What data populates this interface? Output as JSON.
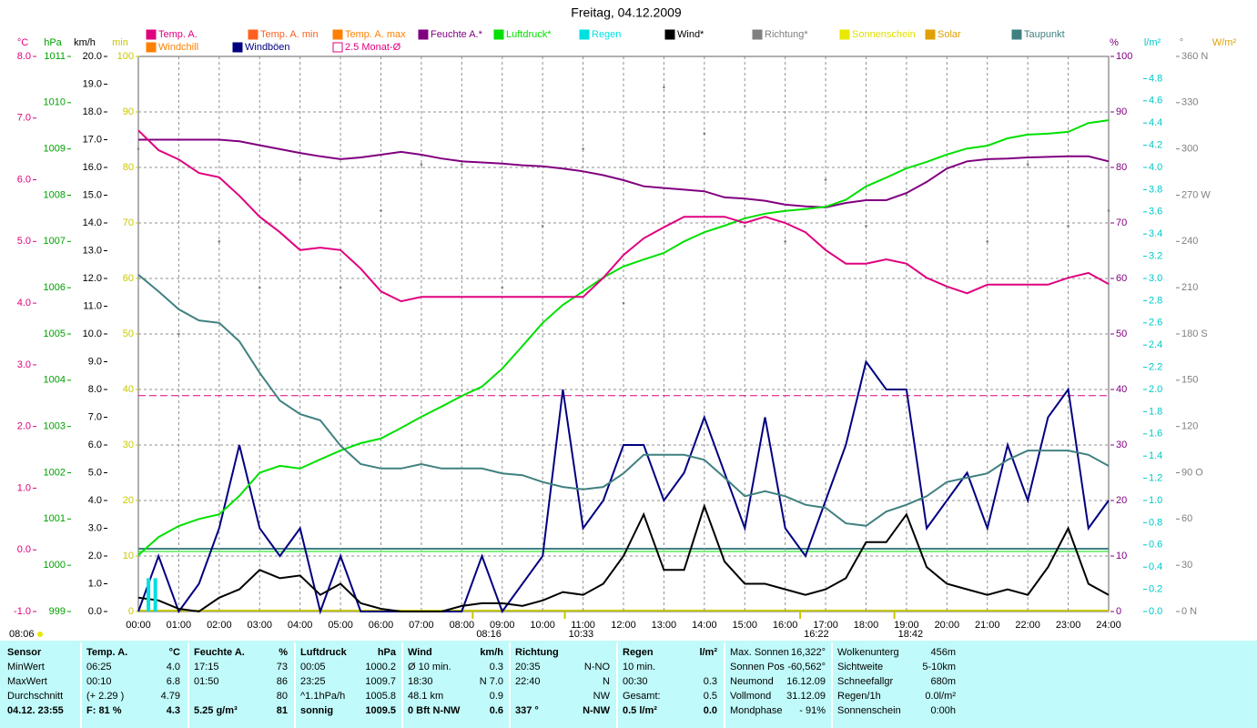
{
  "chart_data": {
    "type": "line",
    "title": "Freitag, 04.12.2009",
    "xlim": [
      0,
      24
    ],
    "xticks": [
      {
        "value": 0,
        "label": "00:00"
      },
      {
        "value": 1,
        "label": "01:00"
      },
      {
        "value": 2,
        "label": "02:00"
      },
      {
        "value": 3,
        "label": "03:00"
      },
      {
        "value": 4,
        "label": "04:00"
      },
      {
        "value": 5,
        "label": "05:00"
      },
      {
        "value": 6,
        "label": "06:00"
      },
      {
        "value": 7,
        "label": "07:00"
      },
      {
        "value": 8,
        "label": "08:00"
      },
      {
        "value": 9,
        "label": "09:00"
      },
      {
        "value": 10,
        "label": "10:00"
      },
      {
        "value": 11,
        "label": "11:00"
      },
      {
        "value": 12,
        "label": "12:00"
      },
      {
        "value": 13,
        "label": "13:00"
      },
      {
        "value": 14,
        "label": "14:00"
      },
      {
        "value": 15,
        "label": "15:00"
      },
      {
        "value": 16,
        "label": "16:00"
      },
      {
        "value": 17,
        "label": "17:00"
      },
      {
        "value": 18,
        "label": "18:00"
      },
      {
        "value": 19,
        "label": "19:00"
      },
      {
        "value": 20,
        "label": "20:00"
      },
      {
        "value": 21,
        "label": "21:00"
      },
      {
        "value": 22,
        "label": "22:00"
      },
      {
        "value": 23,
        "label": "23:00"
      },
      {
        "value": 24,
        "label": "24:00"
      }
    ],
    "grid": true,
    "axes": [
      {
        "label": "°C",
        "color": "#e0007f",
        "lim": [
          -1,
          8
        ],
        "ticks": [
          {
            "value": -1,
            "label": "-1.0"
          },
          {
            "value": 0,
            "label": "0.0"
          },
          {
            "value": 1,
            "label": "1.0"
          },
          {
            "value": 2,
            "label": "2.0"
          },
          {
            "value": 3,
            "label": "3.0"
          },
          {
            "value": 4,
            "label": "4.0"
          },
          {
            "value": 5,
            "label": "5.0"
          },
          {
            "value": 6,
            "label": "6.0"
          },
          {
            "value": 7,
            "label": "7.0"
          },
          {
            "value": 8,
            "label": "8.0"
          }
        ]
      },
      {
        "label": "hPa",
        "color": "#00a000",
        "lim": [
          999,
          1011
        ],
        "ticks": [
          999,
          1000,
          1001,
          1002,
          1003,
          1004,
          1005,
          1006,
          1007,
          1008,
          1009,
          1010,
          1011
        ]
      },
      {
        "label": "km/h",
        "color": "#000000",
        "lim": [
          0,
          20
        ],
        "ticks": [
          {
            "value": 0,
            "label": "0.0"
          },
          {
            "value": 1,
            "label": "1.0"
          },
          {
            "value": 2,
            "label": "2.0"
          },
          {
            "value": 3,
            "label": "3.0"
          },
          {
            "value": 4,
            "label": "4.0"
          },
          {
            "value": 5,
            "label": "5.0"
          },
          {
            "value": 6,
            "label": "6.0"
          },
          {
            "value": 7,
            "label": "7.0"
          },
          {
            "value": 8,
            "label": "8.0"
          },
          {
            "value": 9,
            "label": "9.0"
          },
          {
            "value": 10,
            "label": "10.0"
          },
          {
            "value": 11,
            "label": "11.0"
          },
          {
            "value": 12,
            "label": "12.0"
          },
          {
            "value": 13,
            "label": "13.0"
          },
          {
            "value": 14,
            "label": "14.0"
          },
          {
            "value": 15,
            "label": "15.0"
          },
          {
            "value": 16,
            "label": "16.0"
          },
          {
            "value": 17,
            "label": "17.0"
          },
          {
            "value": 18,
            "label": "18.0"
          },
          {
            "value": 19,
            "label": "19.0"
          },
          {
            "value": 20,
            "label": "20.0"
          }
        ]
      },
      {
        "label": "min",
        "color": "#c8c800",
        "lim": [
          0,
          100
        ],
        "ticks": [
          0,
          10,
          20,
          30,
          40,
          50,
          60,
          70,
          80,
          90,
          100
        ]
      },
      {
        "label": "%",
        "color": "#800080",
        "lim": [
          0,
          100
        ],
        "ticks": [
          0,
          10,
          20,
          30,
          40,
          50,
          60,
          70,
          80,
          90,
          100
        ]
      },
      {
        "label": "l/m²",
        "color": "#00c8c8",
        "lim": [
          0,
          5
        ],
        "ticks": [
          {
            "value": 0,
            "label": "0.0"
          },
          {
            "value": 0.2,
            "label": "0.2"
          },
          {
            "value": 0.4,
            "label": "0.4"
          },
          {
            "value": 0.6,
            "label": "0.6"
          },
          {
            "value": 0.8,
            "label": "0.8"
          },
          {
            "value": 1,
            "label": "1.0"
          },
          {
            "value": 1.2,
            "label": "1.2"
          },
          {
            "value": 1.4,
            "label": "1.4"
          },
          {
            "value": 1.6,
            "label": "1.6"
          },
          {
            "value": 1.8,
            "label": "1.8"
          },
          {
            "value": 2,
            "label": "2.0"
          },
          {
            "value": 2.2,
            "label": "2.2"
          },
          {
            "value": 2.4,
            "label": "2.4"
          },
          {
            "value": 2.6,
            "label": "2.6"
          },
          {
            "value": 2.8,
            "label": "2.8"
          },
          {
            "value": 3,
            "label": "3.0"
          },
          {
            "value": 3.2,
            "label": "3.2"
          },
          {
            "value": 3.4,
            "label": "3.4"
          },
          {
            "value": 3.6,
            "label": "3.6"
          },
          {
            "value": 3.8,
            "label": "3.8"
          },
          {
            "value": 4,
            "label": "4.0"
          },
          {
            "value": 4.2,
            "label": "4.2"
          },
          {
            "value": 4.4,
            "label": "4.4"
          },
          {
            "value": 4.6,
            "label": "4.6"
          },
          {
            "value": 4.8,
            "label": "4.8"
          }
        ]
      },
      {
        "label": "°",
        "color": "#808080",
        "lim": [
          0,
          360
        ],
        "ticks": [
          {
            "value": 0,
            "label": "0 N"
          },
          30,
          60,
          {
            "value": 90,
            "label": "90 O"
          },
          120,
          150,
          {
            "value": 180,
            "label": "180 S"
          },
          210,
          240,
          {
            "value": 270,
            "label": "270 W"
          },
          300,
          330,
          {
            "value": 360,
            "label": "360 N"
          }
        ]
      },
      {
        "label": "W/m²",
        "color": "#e0a000"
      }
    ],
    "legend": [
      {
        "name": "Temp. A.",
        "color": "#e0007f"
      },
      {
        "name": "Temp. A. min",
        "color": "#ff6020"
      },
      {
        "name": "Temp. A. max",
        "color": "#ff8000"
      },
      {
        "name": "Feuchte A.*",
        "color": "#800080"
      },
      {
        "name": "Luftdruck*",
        "color": "#00e000"
      },
      {
        "name": "Regen",
        "color": "#00e0e0"
      },
      {
        "name": "Wind*",
        "color": "#000000"
      },
      {
        "name": "Richtung*",
        "color": "#808080"
      },
      {
        "name": "Sonnenschein",
        "color": "#e8e800"
      },
      {
        "name": "Solar",
        "color": "#e0a000"
      },
      {
        "name": "Taupunkt",
        "color": "#408080"
      },
      {
        "name": "Windchill",
        "color": "#ff8000"
      },
      {
        "name": "Windböen",
        "color": "#000080"
      },
      {
        "name": "2.5 Monat-Ø",
        "color": "#e0007f"
      }
    ],
    "x": [
      0,
      0.5,
      1,
      1.5,
      2,
      2.5,
      3,
      3.5,
      4,
      4.5,
      5,
      5.5,
      6,
      6.5,
      7,
      7.5,
      8,
      8.5,
      9,
      9.5,
      10,
      10.5,
      11,
      11.5,
      12,
      12.5,
      13,
      13.5,
      14,
      14.5,
      15,
      15.5,
      16,
      16.5,
      17,
      17.5,
      18,
      18.5,
      19,
      19.5,
      20,
      20.5,
      21,
      21.5,
      22,
      22.5,
      23,
      23.5,
      24
    ],
    "series": [
      {
        "legend": 12,
        "axis": 2,
        "mark": "line",
        "values": [
          0,
          2,
          0,
          1,
          3,
          6,
          3,
          2,
          3,
          0,
          2,
          0,
          0,
          0,
          0,
          0,
          0,
          2,
          0,
          1,
          2,
          8,
          3,
          4,
          6,
          6,
          4,
          5,
          7,
          5,
          3,
          7,
          3,
          2,
          4,
          6,
          9,
          8,
          8,
          3,
          4,
          5,
          3,
          6,
          4,
          7,
          8,
          3,
          4
        ]
      },
      {
        "legend": 3,
        "axis": 4,
        "mark": "line",
        "values": [
          85,
          85,
          85,
          85,
          85,
          84.7,
          84,
          83.3,
          82.6,
          82,
          81.5,
          81.8,
          82.3,
          82.8,
          82.3,
          81.6,
          81.1,
          80.9,
          80.7,
          80.4,
          80.2,
          79.8,
          79.3,
          78.6,
          77.7,
          76.6,
          76.3,
          76,
          75.7,
          74.6,
          74.4,
          74,
          73.3,
          73,
          72.8,
          73.6,
          74.1,
          74.1,
          75.4,
          77.4,
          79.8,
          81.1,
          81.5,
          81.6,
          81.8,
          81.9,
          82,
          82,
          81.1
        ]
      },
      {
        "legend": 4,
        "axis": 1,
        "mark": "line",
        "values": [
          1000.22,
          1000.61,
          1000.85,
          1001.0,
          1001.1,
          1001.5,
          1002.0,
          1002.15,
          1002.09,
          1002.29,
          1002.48,
          1002.64,
          1002.74,
          1002.97,
          1003.21,
          1003.43,
          1003.66,
          1003.86,
          1004.25,
          1004.74,
          1005.24,
          1005.63,
          1005.92,
          1006.22,
          1006.46,
          1006.61,
          1006.75,
          1007.0,
          1007.2,
          1007.34,
          1007.5,
          1007.6,
          1007.66,
          1007.7,
          1007.75,
          1007.9,
          1008.19,
          1008.38,
          1008.58,
          1008.72,
          1008.88,
          1009.01,
          1009.07,
          1009.23,
          1009.31,
          1009.33,
          1009.37,
          1009.56,
          1009.62
        ]
      },
      {
        "legend": 10,
        "axis": 0,
        "mark": "line",
        "values": [
          4.46,
          4.19,
          3.9,
          3.72,
          3.68,
          3.38,
          2.87,
          2.42,
          2.2,
          2.1,
          1.69,
          1.39,
          1.32,
          1.32,
          1.39,
          1.32,
          1.32,
          1.32,
          1.24,
          1.21,
          1.1,
          1.02,
          0.98,
          1.02,
          1.24,
          1.54,
          1.54,
          1.54,
          1.46,
          1.17,
          0.87,
          0.95,
          0.87,
          0.73,
          0.68,
          0.43,
          0.39,
          0.62,
          0.73,
          0.87,
          1.1,
          1.17,
          1.24,
          1.46,
          1.61,
          1.61,
          1.61,
          1.54,
          1.36
        ]
      },
      {
        "legend": 0,
        "axis": 0,
        "mark": "line",
        "values": [
          6.8,
          6.48,
          6.33,
          6.11,
          6.04,
          5.74,
          5.4,
          5.15,
          4.86,
          4.9,
          4.86,
          4.56,
          4.19,
          4.03,
          4.1,
          4.1,
          4.1,
          4.1,
          4.1,
          4.1,
          4.1,
          4.1,
          4.1,
          4.41,
          4.78,
          5.05,
          5.23,
          5.4,
          5.4,
          5.4,
          5.3,
          5.4,
          5.3,
          5.15,
          4.86,
          4.64,
          4.64,
          4.71,
          4.64,
          4.41,
          4.27,
          4.16,
          4.3,
          4.3,
          4.3,
          4.3,
          4.41,
          4.49,
          4.31
        ]
      },
      {
        "legend": 6,
        "axis": 2,
        "mark": "line",
        "values": [
          0.5,
          0.4,
          0.1,
          0,
          0.5,
          0.8,
          1.5,
          1.2,
          1.3,
          0.6,
          1.0,
          0.3,
          0.1,
          0,
          0,
          0,
          0.2,
          0.3,
          0.3,
          0.2,
          0.4,
          0.7,
          0.6,
          1.0,
          2.0,
          3.5,
          1.5,
          1.5,
          3.8,
          1.8,
          1.0,
          1.0,
          0.8,
          0.6,
          0.8,
          1.2,
          2.5,
          2.5,
          3.5,
          1.6,
          1.0,
          0.8,
          0.6,
          0.8,
          0.6,
          1.6,
          3.0,
          1.0,
          0.6
        ]
      },
      {
        "legend": 7,
        "axis": 6,
        "mark": "dots",
        "x": [
          0,
          1,
          2,
          3,
          4,
          5,
          6,
          7,
          8,
          9,
          10,
          11,
          12,
          13,
          14,
          15,
          16,
          17,
          18,
          19,
          20,
          21,
          22,
          23,
          24
        ],
        "values": [
          300,
          180,
          240,
          210,
          280,
          210,
          260,
          290,
          290,
          210,
          250,
          300,
          200,
          340,
          310,
          250,
          240,
          280,
          250,
          270,
          210,
          240,
          290,
          250,
          260
        ]
      },
      {
        "legend": 5,
        "axis": 5,
        "mark": "bars",
        "x": [
          0.25,
          0.42
        ],
        "values": [
          0.3,
          0.3
        ]
      }
    ],
    "reference": {
      "legend": 13,
      "axis": 0,
      "value": 2.5
    },
    "sunrise_label": "08:06",
    "events": [
      {
        "label": "08:16",
        "x": 8.27
      },
      {
        "label": "10:33",
        "x": 10.55
      },
      {
        "label": "16:22",
        "x": 16.37
      },
      {
        "label": "18:42",
        "x": 18.7
      }
    ]
  },
  "summary": {
    "first_column": [
      "Sensor",
      "MinWert",
      "MaxWert",
      "Durchschnitt",
      "04.12. 23:55"
    ],
    "columns": [
      {
        "header": "Temp. A.",
        "unit": "°C",
        "rows": [
          {
            "left": "06:25",
            "right": "4.0"
          },
          {
            "left": "00:10",
            "right": "6.8"
          },
          {
            "left": "(+ 2.29 )",
            "right": "4.79"
          },
          {
            "left": "F: 81 %",
            "right": "4.3"
          }
        ]
      },
      {
        "header": "Feuchte A.",
        "unit": "%",
        "rows": [
          {
            "left": "17:15",
            "right": "73"
          },
          {
            "left": "01:50",
            "right": "86"
          },
          {
            "right": "80"
          },
          {
            "left": "5.25 g/m³",
            "right": "81"
          }
        ]
      },
      {
        "header": "Luftdruck",
        "unit": "hPa",
        "rows": [
          {
            "left": "00:05",
            "right": "1000.2"
          },
          {
            "left": "23:25",
            "right": "1009.7"
          },
          {
            "left": "^1.1hPa/h",
            "right": "1005.8"
          },
          {
            "left": "sonnig",
            "right": "1009.5"
          }
        ]
      },
      {
        "header": "Wind",
        "unit": "km/h",
        "rows": [
          {
            "left": "Ø 10 min.",
            "right": "0.3"
          },
          {
            "left": "18:30",
            "right": "N 7.0"
          },
          {
            "left": "48.1 km",
            "right": "0.9"
          },
          {
            "left": "0 Bft N-NW",
            "right": "0.6"
          }
        ]
      },
      {
        "header": "Richtung",
        "rows": [
          {
            "left": "20:35",
            "right": "N-NO"
          },
          {
            "left": "22:40",
            "right": "N"
          },
          {
            "right": "NW"
          },
          {
            "left": "337 °",
            "right": "N-NW"
          }
        ]
      },
      {
        "header": "Regen",
        "unit": "l/m²",
        "rows": [
          {
            "left": "10 min."
          },
          {
            "left": "00:30",
            "right": "0.3"
          },
          {
            "left": "Gesamt:",
            "right": "0.5"
          },
          {
            "left": "0.5 l/m²",
            "right": "0.0"
          }
        ]
      }
    ],
    "info": [
      [
        {
          "left": "Max. Sonnen",
          "right": "16,322°"
        },
        {
          "left": "Sonnen Pos",
          "right": "-60,562°"
        },
        {
          "left": "Neumond",
          "right": "16.12.09"
        },
        {
          "left": "Vollmond",
          "right": "31.12.09"
        },
        {
          "left": "Mondphase",
          "right": "- 91%"
        }
      ],
      [
        {
          "left": "Wolkenunterg",
          "right": "456m"
        },
        {
          "left": "Sichtweite",
          "right": "5-10km"
        },
        {
          "left": "Schneefallgr",
          "right": "680m"
        },
        {
          "left": "Regen/1h",
          "right": "0.0l/m²"
        },
        {
          "left": "Sonnenschein",
          "right": "0:00h"
        }
      ]
    ]
  }
}
